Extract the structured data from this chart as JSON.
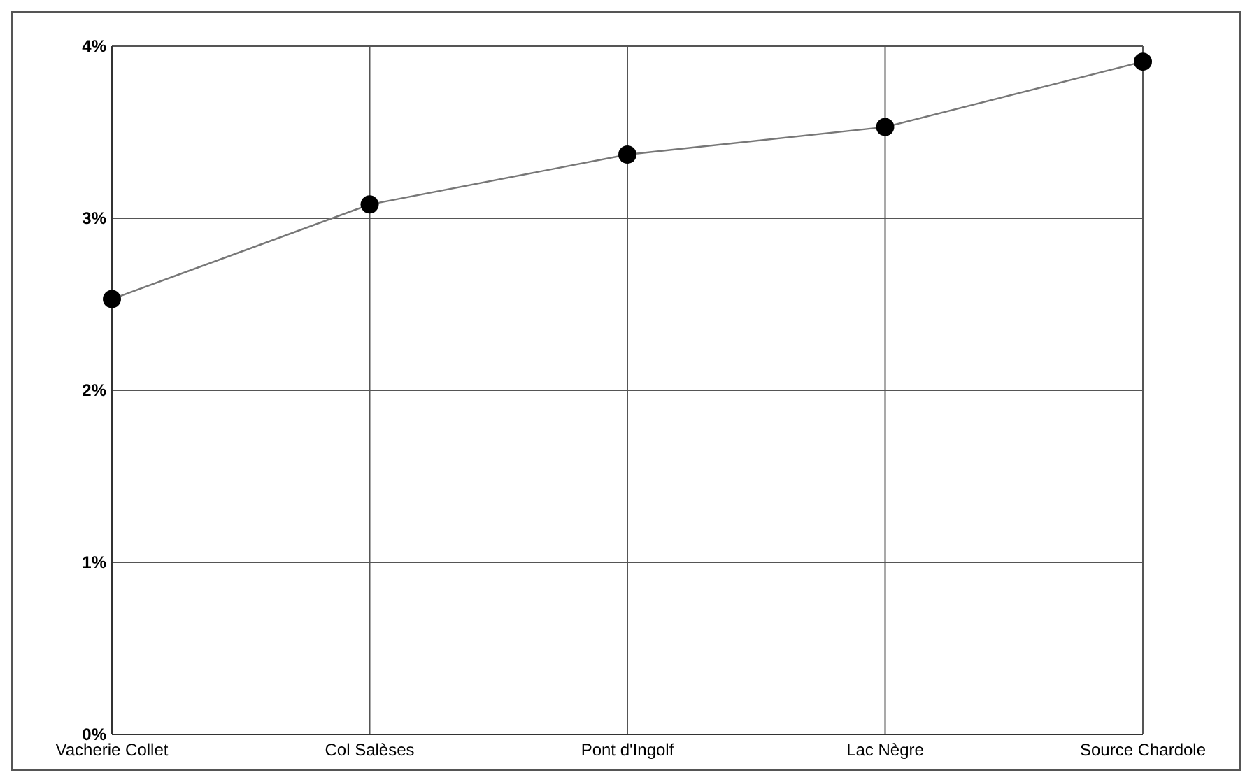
{
  "chart_data": {
    "type": "line",
    "categories": [
      "Vacherie Collet",
      "Col Salèses",
      "Pont d'Ingolf",
      "Lac Nègre",
      "Source Chardole"
    ],
    "series": [
      {
        "color": "#000000",
        "values": [
          2.53,
          3.08,
          3.37,
          3.53,
          3.91
        ]
      }
    ],
    "ylim": [
      0,
      4
    ],
    "yticks": [
      {
        "value": 0,
        "label": "0%"
      },
      {
        "value": 1,
        "label": "1%"
      },
      {
        "value": 2,
        "label": "2%"
      },
      {
        "value": 3,
        "label": "3%"
      },
      {
        "value": 4,
        "label": "4%"
      }
    ],
    "grid": true,
    "marker": "circle",
    "line_style": "solid"
  }
}
